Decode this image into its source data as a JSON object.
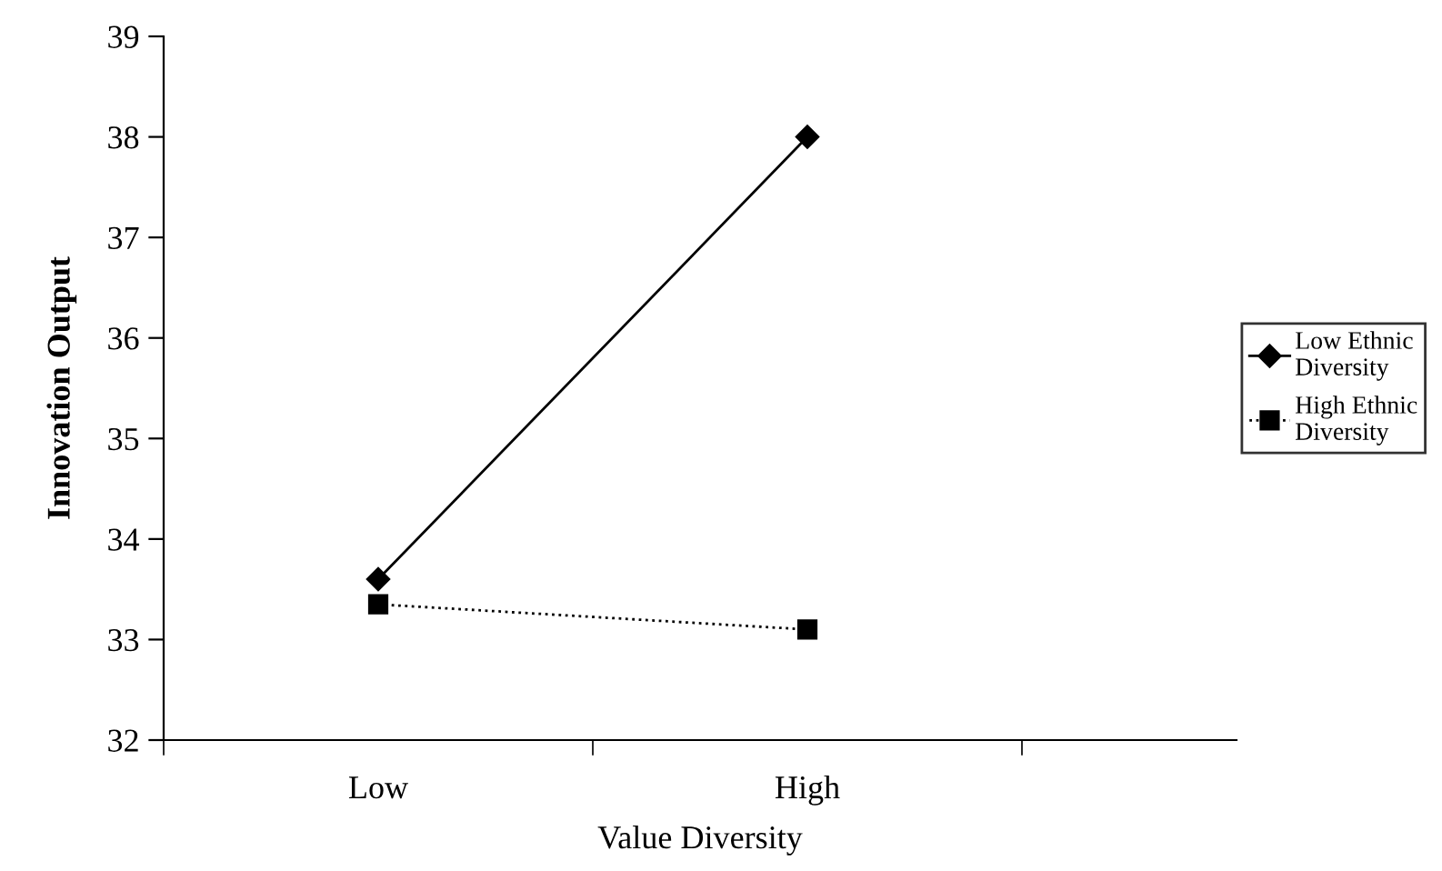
{
  "chart_data": {
    "type": "line",
    "xlabel": "Value Diversity",
    "ylabel": "Innovation Output",
    "categories": [
      "Low",
      "High"
    ],
    "ylim": [
      32,
      39
    ],
    "yticks": [
      32,
      33,
      34,
      35,
      36,
      37,
      38,
      39
    ],
    "grid": false,
    "legend": "right",
    "series": [
      {
        "name": "Low Ethnic\nDiversity",
        "color": "#000000",
        "values": [
          33.6,
          38.0
        ],
        "marker": "diamond",
        "line_style": "solid"
      },
      {
        "name": "High Ethnic\nDiversity",
        "color": "#000000",
        "values": [
          33.35,
          33.1
        ],
        "marker": "square",
        "line_style": "dotted"
      }
    ]
  }
}
